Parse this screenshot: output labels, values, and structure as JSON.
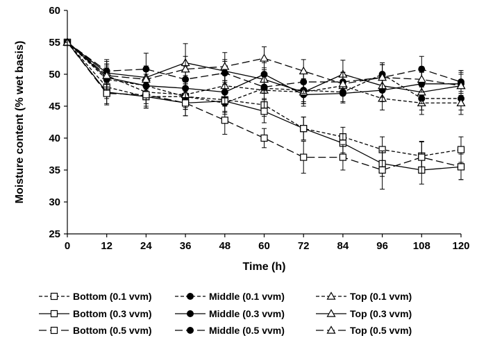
{
  "chart_data": {
    "type": "line",
    "title": "",
    "xlabel": "Time (h)",
    "ylabel": "Moisture content  (% wet basis)",
    "xlim": [
      0,
      120
    ],
    "ylim": [
      25,
      60
    ],
    "x_ticks": [
      0,
      12,
      24,
      36,
      48,
      60,
      72,
      84,
      96,
      108,
      120
    ],
    "y_ticks": [
      25,
      30,
      35,
      40,
      45,
      50,
      55,
      60
    ],
    "grid": false,
    "legend_position": "bottom",
    "x": [
      0,
      12,
      24,
      36,
      48,
      60,
      72,
      84,
      96,
      108,
      120
    ],
    "series": [
      {
        "name": "Bottom (0.1 vvm)",
        "position": "bottom",
        "rate": "0.1",
        "marker": "square-open",
        "dash": "short-dash",
        "values": [
          55,
          48,
          46.5,
          46.5,
          46,
          45.2,
          41.5,
          40.2,
          38.2,
          37.2,
          38.2
        ],
        "errors": [
          0,
          1.8,
          1.8,
          2,
          1.8,
          1.8,
          1.8,
          1.5,
          2,
          2.2,
          2
        ]
      },
      {
        "name": "Middle (0.1 vvm)",
        "position": "middle",
        "rate": "0.1",
        "marker": "circle-filled",
        "dash": "short-dash",
        "values": [
          55,
          49.2,
          48.2,
          46.5,
          45.5,
          47.8,
          47.5,
          47.2,
          50,
          46.2,
          46.2
        ],
        "errors": [
          0,
          1.8,
          1.8,
          2,
          1.8,
          1.8,
          1.8,
          1.5,
          1.8,
          1.8,
          1.8
        ]
      },
      {
        "name": "Top (0.1 vvm)",
        "position": "top",
        "rate": "0.1",
        "marker": "triangle-open",
        "dash": "short-dash",
        "values": [
          55,
          49.8,
          47.2,
          46.8,
          48.2,
          47.5,
          47.2,
          48.2,
          46.2,
          45.5,
          45.5
        ],
        "errors": [
          0,
          1.8,
          1.8,
          2,
          1.8,
          1.8,
          1.8,
          1.5,
          1.8,
          1.8,
          1.8
        ]
      },
      {
        "name": "Bottom (0.3 vvm)",
        "position": "bottom",
        "rate": "0.3",
        "marker": "square-open",
        "dash": "solid",
        "values": [
          55,
          47.2,
          46.5,
          45.5,
          45.8,
          44.2,
          41.5,
          39.2,
          36,
          35,
          35.5
        ],
        "errors": [
          0,
          1.8,
          1.8,
          2,
          1.8,
          1.8,
          1.8,
          1.5,
          2,
          2.2,
          2
        ]
      },
      {
        "name": "Middle (0.3 vvm)",
        "position": "middle",
        "rate": "0.3",
        "marker": "circle-filled",
        "dash": "solid",
        "values": [
          55,
          49.5,
          48.2,
          47.8,
          47.2,
          50,
          46.8,
          47,
          47.5,
          48.5,
          48.5
        ],
        "errors": [
          0,
          1.8,
          1.8,
          2,
          1.8,
          1.8,
          1.8,
          1.5,
          1.8,
          1.8,
          1.8
        ]
      },
      {
        "name": "Top (0.3 vvm)",
        "position": "top",
        "rate": "0.3",
        "marker": "triangle-open",
        "dash": "solid",
        "values": [
          55,
          50.2,
          49.5,
          51.8,
          50.5,
          49.2,
          47.2,
          50,
          48.2,
          47.2,
          48.2
        ],
        "errors": [
          0,
          1.8,
          1.8,
          3,
          1.8,
          1.8,
          1.8,
          2.2,
          1.8,
          1.8,
          1.8
        ]
      },
      {
        "name": "Bottom (0.5 vvm)",
        "position": "bottom",
        "rate": "0.5",
        "marker": "square-open",
        "dash": "long-dash",
        "values": [
          55,
          47,
          46.8,
          45.5,
          42.8,
          40,
          37,
          37,
          35,
          37,
          35.5
        ],
        "errors": [
          0,
          1.8,
          1.8,
          2,
          2.2,
          1.5,
          2.5,
          2,
          3,
          2.5,
          2
        ]
      },
      {
        "name": "Middle (0.5 vvm)",
        "position": "middle",
        "rate": "0.5",
        "marker": "circle-filled",
        "dash": "long-dash",
        "values": [
          55,
          50.5,
          50.8,
          49.2,
          50.2,
          48,
          48.8,
          48.8,
          49.5,
          50.8,
          48.8
        ],
        "errors": [
          0,
          1.8,
          2.5,
          2,
          1.8,
          1.8,
          1.8,
          1.5,
          2,
          2,
          1.8
        ]
      },
      {
        "name": "Top (0.5 vvm)",
        "position": "top",
        "rate": "0.5",
        "marker": "triangle-open",
        "dash": "long-dash",
        "values": [
          55,
          49.8,
          49.2,
          50.8,
          51.2,
          52.5,
          50.5,
          48.5,
          49.5,
          49.2,
          48.2
        ],
        "errors": [
          0,
          1.8,
          1.8,
          2,
          2.2,
          1.8,
          1.8,
          1.8,
          2,
          2,
          1.8
        ]
      }
    ],
    "legend": [
      "Bottom (0.1 vvm)",
      "Middle (0.1 vvm)",
      "Top (0.1 vvm)",
      "Bottom (0.3 vvm)",
      "Middle (0.3 vvm)",
      "Top (0.3 vvm)",
      "Bottom (0.5 vvm)",
      "Middle (0.5 vvm)",
      "Top (0.5 vvm)"
    ]
  },
  "colors": {
    "line": "#000000",
    "background": "#ffffff",
    "marker_fill_open": "#ffffff",
    "marker_fill_solid": "#000000"
  }
}
